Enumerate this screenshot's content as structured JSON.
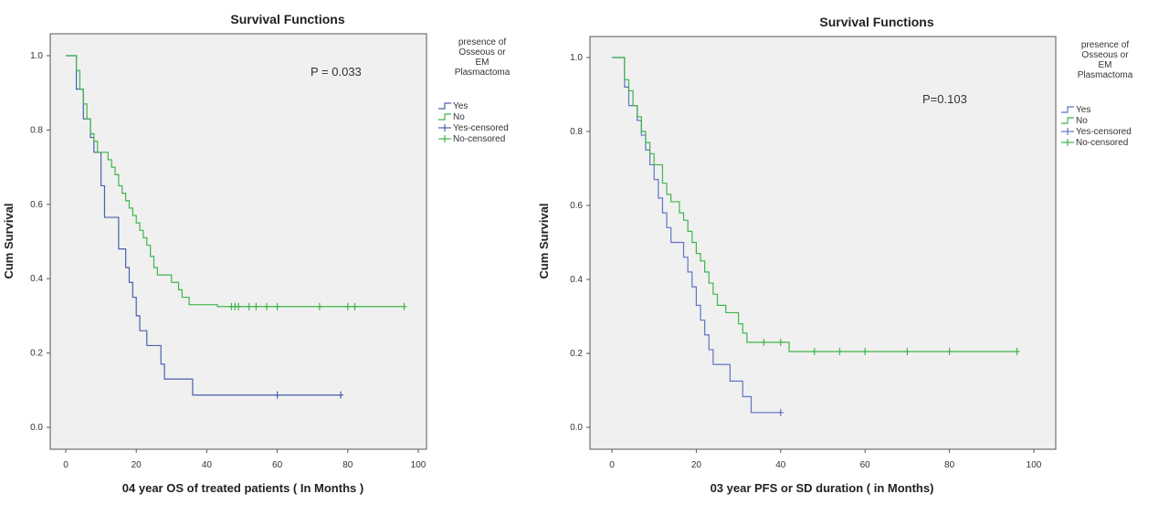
{
  "chart_data": [
    {
      "type": "line",
      "title": "Survival Functions",
      "xlabel": "04 year OS of treated patients ( In Months )",
      "ylabel": "Cum Survival",
      "xlim": [
        0,
        100
      ],
      "ylim": [
        0,
        1
      ],
      "xticks": [
        "0",
        "20",
        "40",
        "60",
        "80",
        "100"
      ],
      "yticks": [
        "0.0",
        "0.2",
        "0.4",
        "0.6",
        "0.8",
        "1.0"
      ],
      "annotation": "P = 0.033",
      "legend_title": [
        "presence of",
        "Osseous or",
        "EM",
        "Plasmactoma"
      ],
      "legend": [
        "Yes",
        "No",
        "Yes-censored",
        "No-censored"
      ],
      "series": [
        {
          "name": "Yes",
          "color": "#4a5fb0",
          "steps": [
            [
              0,
              1.0
            ],
            [
              3,
              0.91
            ],
            [
              5,
              0.83
            ],
            [
              7,
              0.78
            ],
            [
              8,
              0.74
            ],
            [
              10,
              0.65
            ],
            [
              11,
              0.565
            ],
            [
              15,
              0.48
            ],
            [
              17,
              0.43
            ],
            [
              18,
              0.39
            ],
            [
              19,
              0.35
            ],
            [
              20,
              0.3
            ],
            [
              21,
              0.26
            ],
            [
              23,
              0.22
            ],
            [
              27,
              0.17
            ],
            [
              28,
              0.13
            ],
            [
              36,
              0.087
            ],
            [
              78,
              0.087
            ]
          ],
          "censored": [
            [
              60,
              0.087
            ],
            [
              78,
              0.087
            ]
          ]
        },
        {
          "name": "No",
          "color": "#3fb54a",
          "steps": [
            [
              0,
              1.0
            ],
            [
              3,
              0.96
            ],
            [
              4,
              0.91
            ],
            [
              5,
              0.87
            ],
            [
              6,
              0.83
            ],
            [
              7,
              0.79
            ],
            [
              8,
              0.77
            ],
            [
              9,
              0.74
            ],
            [
              12,
              0.72
            ],
            [
              13,
              0.7
            ],
            [
              14,
              0.68
            ],
            [
              15,
              0.65
            ],
            [
              16,
              0.63
            ],
            [
              17,
              0.61
            ],
            [
              18,
              0.59
            ],
            [
              19,
              0.57
            ],
            [
              20,
              0.55
            ],
            [
              21,
              0.53
            ],
            [
              22,
              0.51
            ],
            [
              23,
              0.49
            ],
            [
              24,
              0.46
            ],
            [
              25,
              0.43
            ],
            [
              26,
              0.41
            ],
            [
              30,
              0.39
            ],
            [
              32,
              0.37
            ],
            [
              33,
              0.35
            ],
            [
              35,
              0.33
            ],
            [
              37,
              0.33
            ],
            [
              43,
              0.325
            ],
            [
              96,
              0.325
            ]
          ],
          "censored": [
            [
              47,
              0.325
            ],
            [
              48,
              0.325
            ],
            [
              49,
              0.325
            ],
            [
              52,
              0.325
            ],
            [
              54,
              0.325
            ],
            [
              57,
              0.325
            ],
            [
              60,
              0.325
            ],
            [
              72,
              0.325
            ],
            [
              80,
              0.325
            ],
            [
              82,
              0.325
            ],
            [
              96,
              0.325
            ]
          ]
        }
      ]
    },
    {
      "type": "line",
      "title": "Survival Functions",
      "xlabel": "03 year PFS or SD duration ( in Months)",
      "ylabel": "Cum Survival",
      "xlim": [
        0,
        100
      ],
      "ylim": [
        0,
        1
      ],
      "xticks": [
        "0",
        "20",
        "40",
        "60",
        "80",
        "100"
      ],
      "yticks": [
        "0.0",
        "0.2",
        "0.4",
        "0.6",
        "0.8",
        "1.0"
      ],
      "annotation": "P=0.103",
      "legend_title": [
        "presence of",
        "Osseous or",
        "EM",
        "Plasmactoma"
      ],
      "legend": [
        "Yes",
        "No",
        "Yes-censored",
        "No-censored"
      ],
      "series": [
        {
          "name": "Yes",
          "color": "#5f74c4",
          "steps": [
            [
              0,
              1.0
            ],
            [
              3,
              0.92
            ],
            [
              4,
              0.87
            ],
            [
              6,
              0.83
            ],
            [
              7,
              0.79
            ],
            [
              8,
              0.75
            ],
            [
              9,
              0.71
            ],
            [
              10,
              0.67
            ],
            [
              11,
              0.62
            ],
            [
              12,
              0.58
            ],
            [
              13,
              0.54
            ],
            [
              14,
              0.5
            ],
            [
              17,
              0.46
            ],
            [
              18,
              0.42
            ],
            [
              19,
              0.38
            ],
            [
              20,
              0.33
            ],
            [
              21,
              0.29
            ],
            [
              22,
              0.25
            ],
            [
              23,
              0.21
            ],
            [
              24,
              0.17
            ],
            [
              28,
              0.125
            ],
            [
              31,
              0.083
            ],
            [
              33,
              0.04
            ],
            [
              40,
              0.04
            ]
          ],
          "censored": [
            [
              40,
              0.04
            ]
          ]
        },
        {
          "name": "No",
          "color": "#3fb54a",
          "steps": [
            [
              0,
              1.0
            ],
            [
              3,
              0.94
            ],
            [
              4,
              0.91
            ],
            [
              5,
              0.87
            ],
            [
              6,
              0.84
            ],
            [
              7,
              0.8
            ],
            [
              8,
              0.77
            ],
            [
              9,
              0.74
            ],
            [
              10,
              0.71
            ],
            [
              12,
              0.66
            ],
            [
              13,
              0.63
            ],
            [
              14,
              0.61
            ],
            [
              16,
              0.58
            ],
            [
              17,
              0.56
            ],
            [
              18,
              0.53
            ],
            [
              19,
              0.5
            ],
            [
              20,
              0.47
            ],
            [
              21,
              0.45
            ],
            [
              22,
              0.42
            ],
            [
              23,
              0.39
            ],
            [
              24,
              0.36
            ],
            [
              25,
              0.33
            ],
            [
              27,
              0.31
            ],
            [
              30,
              0.28
            ],
            [
              31,
              0.255
            ],
            [
              32,
              0.23
            ],
            [
              38,
              0.23
            ],
            [
              42,
              0.205
            ],
            [
              96,
              0.205
            ]
          ],
          "censored": [
            [
              36,
              0.23
            ],
            [
              40,
              0.23
            ],
            [
              48,
              0.205
            ],
            [
              54,
              0.205
            ],
            [
              60,
              0.205
            ],
            [
              70,
              0.205
            ],
            [
              80,
              0.205
            ],
            [
              96,
              0.205
            ]
          ]
        }
      ]
    }
  ]
}
